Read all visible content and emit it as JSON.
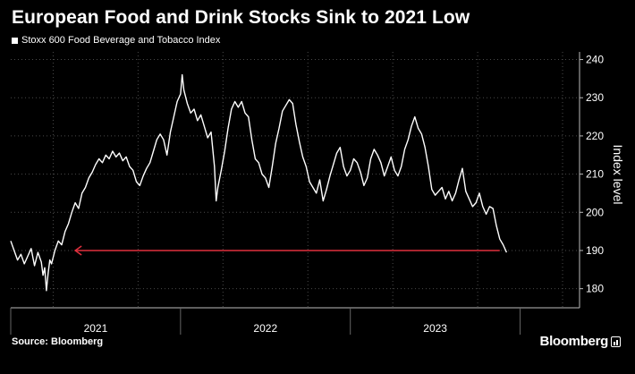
{
  "chart_data": {
    "type": "line",
    "title": "European Food and Drink Stocks Sink to 2021 Low",
    "legend": [
      "Stoxx 600 Food Beverage and Tobacco Index"
    ],
    "legend_position": "top-left",
    "ylabel": "Index level",
    "ylim": [
      175,
      242
    ],
    "yticks": [
      180,
      190,
      200,
      210,
      220,
      230,
      240
    ],
    "xlim": [
      2020.5,
      2023.85
    ],
    "xtick_labels": [
      {
        "label": "2021",
        "x": 2021.0
      },
      {
        "label": "2022",
        "x": 2022.0
      },
      {
        "label": "2023",
        "x": 2023.0
      }
    ],
    "grid": true,
    "series": [
      {
        "name": "Stoxx 600 Food Beverage and Tobacco Index",
        "color": "#ffffff",
        "points": [
          [
            2020.5,
            192.5
          ],
          [
            2020.52,
            190.0
          ],
          [
            2020.54,
            187.5
          ],
          [
            2020.56,
            189.0
          ],
          [
            2020.58,
            186.5
          ],
          [
            2020.6,
            188.5
          ],
          [
            2020.62,
            190.5
          ],
          [
            2020.64,
            186.0
          ],
          [
            2020.66,
            189.5
          ],
          [
            2020.68,
            187.0
          ],
          [
            2020.69,
            183.5
          ],
          [
            2020.7,
            185.5
          ],
          [
            2020.71,
            179.5
          ],
          [
            2020.72,
            184.0
          ],
          [
            2020.73,
            187.5
          ],
          [
            2020.74,
            186.5
          ],
          [
            2020.76,
            190.0
          ],
          [
            2020.78,
            192.5
          ],
          [
            2020.8,
            191.5
          ],
          [
            2020.82,
            195.0
          ],
          [
            2020.84,
            197.0
          ],
          [
            2020.86,
            200.0
          ],
          [
            2020.88,
            202.5
          ],
          [
            2020.9,
            201.0
          ],
          [
            2020.92,
            205.0
          ],
          [
            2020.94,
            206.5
          ],
          [
            2020.96,
            209.0
          ],
          [
            2020.98,
            210.5
          ],
          [
            2021.0,
            212.5
          ],
          [
            2021.02,
            214.0
          ],
          [
            2021.04,
            213.0
          ],
          [
            2021.06,
            215.0
          ],
          [
            2021.08,
            214.0
          ],
          [
            2021.1,
            216.0
          ],
          [
            2021.12,
            214.5
          ],
          [
            2021.14,
            215.5
          ],
          [
            2021.16,
            213.5
          ],
          [
            2021.18,
            214.5
          ],
          [
            2021.2,
            212.0
          ],
          [
            2021.22,
            211.0
          ],
          [
            2021.24,
            208.0
          ],
          [
            2021.26,
            207.0
          ],
          [
            2021.28,
            209.5
          ],
          [
            2021.3,
            211.5
          ],
          [
            2021.32,
            213.0
          ],
          [
            2021.34,
            216.0
          ],
          [
            2021.36,
            219.0
          ],
          [
            2021.38,
            220.5
          ],
          [
            2021.4,
            219.0
          ],
          [
            2021.42,
            215.0
          ],
          [
            2021.44,
            221.0
          ],
          [
            2021.46,
            225.0
          ],
          [
            2021.48,
            229.0
          ],
          [
            2021.5,
            231.0
          ],
          [
            2021.51,
            236.0
          ],
          [
            2021.52,
            232.0
          ],
          [
            2021.54,
            228.5
          ],
          [
            2021.56,
            226.0
          ],
          [
            2021.58,
            227.0
          ],
          [
            2021.6,
            224.0
          ],
          [
            2021.62,
            225.5
          ],
          [
            2021.64,
            222.5
          ],
          [
            2021.66,
            219.5
          ],
          [
            2021.68,
            221.0
          ],
          [
            2021.7,
            212.0
          ],
          [
            2021.71,
            203.0
          ],
          [
            2021.72,
            206.5
          ],
          [
            2021.74,
            211.0
          ],
          [
            2021.76,
            216.0
          ],
          [
            2021.78,
            222.0
          ],
          [
            2021.8,
            227.0
          ],
          [
            2021.82,
            229.0
          ],
          [
            2021.84,
            227.5
          ],
          [
            2021.86,
            229.0
          ],
          [
            2021.88,
            226.0
          ],
          [
            2021.9,
            225.0
          ],
          [
            2021.92,
            219.0
          ],
          [
            2021.94,
            214.0
          ],
          [
            2021.96,
            213.0
          ],
          [
            2021.98,
            210.0
          ],
          [
            2022.0,
            209.0
          ],
          [
            2022.02,
            206.5
          ],
          [
            2022.04,
            212.0
          ],
          [
            2022.06,
            218.0
          ],
          [
            2022.08,
            222.0
          ],
          [
            2022.1,
            226.5
          ],
          [
            2022.12,
            228.0
          ],
          [
            2022.14,
            229.5
          ],
          [
            2022.16,
            228.5
          ],
          [
            2022.18,
            223.0
          ],
          [
            2022.2,
            218.5
          ],
          [
            2022.22,
            214.5
          ],
          [
            2022.24,
            212.0
          ],
          [
            2022.26,
            208.0
          ],
          [
            2022.28,
            206.5
          ],
          [
            2022.3,
            205.0
          ],
          [
            2022.32,
            208.5
          ],
          [
            2022.34,
            203.0
          ],
          [
            2022.36,
            206.0
          ],
          [
            2022.38,
            209.5
          ],
          [
            2022.4,
            212.5
          ],
          [
            2022.42,
            215.5
          ],
          [
            2022.44,
            217.0
          ],
          [
            2022.46,
            212.0
          ],
          [
            2022.48,
            209.5
          ],
          [
            2022.5,
            211.0
          ],
          [
            2022.52,
            214.0
          ],
          [
            2022.54,
            213.0
          ],
          [
            2022.56,
            210.5
          ],
          [
            2022.58,
            207.0
          ],
          [
            2022.6,
            209.0
          ],
          [
            2022.62,
            214.0
          ],
          [
            2022.64,
            216.5
          ],
          [
            2022.66,
            215.0
          ],
          [
            2022.68,
            213.0
          ],
          [
            2022.7,
            209.5
          ],
          [
            2022.72,
            212.0
          ],
          [
            2022.74,
            214.5
          ],
          [
            2022.76,
            211.0
          ],
          [
            2022.78,
            209.5
          ],
          [
            2022.8,
            212.0
          ],
          [
            2022.82,
            216.5
          ],
          [
            2022.84,
            219.0
          ],
          [
            2022.86,
            222.5
          ],
          [
            2022.88,
            225.0
          ],
          [
            2022.9,
            222.0
          ],
          [
            2022.92,
            220.5
          ],
          [
            2022.94,
            217.0
          ],
          [
            2022.96,
            212.0
          ],
          [
            2022.98,
            206.0
          ],
          [
            2023.0,
            204.5
          ],
          [
            2023.02,
            205.5
          ],
          [
            2023.04,
            206.5
          ],
          [
            2023.06,
            203.5
          ],
          [
            2023.08,
            205.5
          ],
          [
            2023.1,
            203.0
          ],
          [
            2023.12,
            205.0
          ],
          [
            2023.14,
            208.5
          ],
          [
            2023.16,
            211.5
          ],
          [
            2023.18,
            205.5
          ],
          [
            2023.2,
            203.5
          ],
          [
            2023.22,
            201.5
          ],
          [
            2023.24,
            202.5
          ],
          [
            2023.26,
            205.0
          ],
          [
            2023.28,
            201.5
          ],
          [
            2023.3,
            199.5
          ],
          [
            2023.32,
            201.5
          ],
          [
            2023.34,
            201.0
          ],
          [
            2023.36,
            196.5
          ],
          [
            2023.38,
            193.0
          ],
          [
            2023.4,
            191.5
          ],
          [
            2023.42,
            189.5
          ]
        ]
      }
    ],
    "annotations": [
      {
        "type": "arrow",
        "color": "#e0303e",
        "y": 190,
        "from_x": 2023.38,
        "to_x": 2020.88,
        "direction": "left"
      }
    ]
  },
  "footer": {
    "source": "Source: Bloomberg",
    "brand": "Bloomberg"
  },
  "icons": {
    "brand_mark": "bloomberg-icon"
  }
}
